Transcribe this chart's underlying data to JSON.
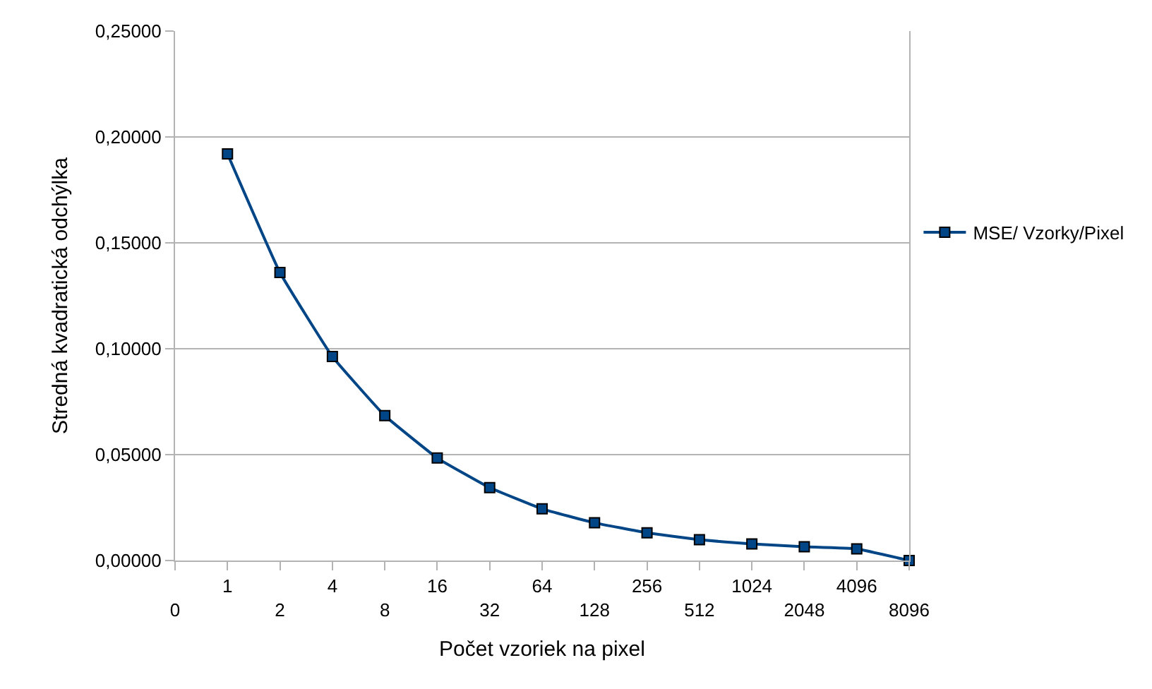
{
  "chart_data": {
    "type": "line",
    "xlabel": "Počet vzoriek na pixel",
    "ylabel": "Stredná kvadratická odchýlka",
    "categories": [
      "0",
      "1",
      "2",
      "4",
      "8",
      "16",
      "32",
      "64",
      "128",
      "256",
      "512",
      "1024",
      "2048",
      "4096",
      "8096"
    ],
    "series": [
      {
        "name": "MSE/ Vzorky/Pixel",
        "color": "#004586",
        "values": [
          null,
          0.192,
          0.136,
          0.0963,
          0.0684,
          0.0484,
          0.0344,
          0.0244,
          0.0178,
          0.0131,
          0.0098,
          0.0078,
          0.0065,
          0.0055,
          0
        ]
      }
    ],
    "ylim": [
      0,
      0.25
    ],
    "yticks": [
      {
        "value": 0,
        "label": "0,00000"
      },
      {
        "value": 0.05,
        "label": "0,05000"
      },
      {
        "value": 0.1,
        "label": "0,10000"
      },
      {
        "value": 0.15,
        "label": "0,15000"
      },
      {
        "value": 0.2,
        "label": "0,20000"
      },
      {
        "value": 0.25,
        "label": "0,25000"
      }
    ],
    "grid": "y",
    "legend": "right",
    "marker": "square",
    "line_style": "solid"
  }
}
